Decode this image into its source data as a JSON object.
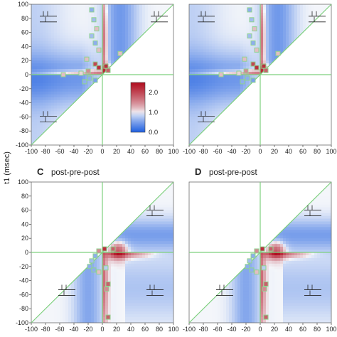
{
  "figure": {
    "ylabel": "t1 (msec)",
    "colors": {
      "low": "#1f5fe0",
      "mid": "#f4f6fa",
      "high": "#b00d1e",
      "guide": "#7ed07e",
      "marker_edge": "#8fd38f"
    }
  },
  "chart_data": [
    {
      "type": "heatmap",
      "panel": "A",
      "letter": "",
      "title": "",
      "xlim": [
        -100,
        100
      ],
      "ylim": [
        -100,
        100
      ],
      "xticks": [
        "-100",
        "-80",
        "-60",
        "-40",
        "-20",
        "0",
        "20",
        "40",
        "60",
        "80",
        "100"
      ],
      "yticks": [
        "100",
        "80",
        "60",
        "40",
        "20",
        "0",
        "-20",
        "-40",
        "-60",
        "-80",
        "-100"
      ],
      "triangle": "upper-left",
      "ridges": [
        "horizontal",
        "vertical"
      ],
      "colorbar": {
        "ticks": [
          "2.0",
          "1.0",
          "0.0"
        ],
        "range": [
          0.0,
          2.5
        ]
      },
      "markers": [
        [
          -15,
          92,
          0.6
        ],
        [
          -12,
          78,
          0.7
        ],
        [
          -8,
          65,
          1.2
        ],
        [
          -15,
          55,
          0.7
        ],
        [
          -10,
          45,
          0.6
        ],
        [
          -5,
          35,
          1.2
        ],
        [
          25,
          30,
          1.2
        ],
        [
          -22,
          22,
          1.2
        ],
        [
          -10,
          15,
          2.0
        ],
        [
          -5,
          10,
          2.2
        ],
        [
          5,
          12,
          2.2
        ],
        [
          8,
          6,
          1.8
        ],
        [
          -20,
          5,
          1.5
        ],
        [
          -55,
          0,
          1.2
        ],
        [
          -30,
          2,
          1.1
        ],
        [
          -18,
          -5,
          0.6
        ],
        [
          -25,
          -10,
          0.6
        ],
        [
          -10,
          -8,
          0.5
        ]
      ]
    },
    {
      "type": "heatmap",
      "panel": "B",
      "letter": "",
      "title": "",
      "xlim": [
        -100,
        100
      ],
      "ylim": [
        -100,
        100
      ],
      "xticks": [
        "-100",
        "-80",
        "-60",
        "-40",
        "-20",
        "0",
        "20",
        "40",
        "60",
        "80",
        "100"
      ],
      "yticks": [],
      "triangle": "upper-left",
      "ridges": [
        "horizontal",
        "vertical"
      ],
      "markers": [
        [
          -15,
          92,
          0.6
        ],
        [
          -12,
          78,
          0.7
        ],
        [
          -8,
          65,
          1.2
        ],
        [
          -15,
          55,
          0.7
        ],
        [
          -10,
          45,
          0.6
        ],
        [
          -5,
          35,
          1.2
        ],
        [
          25,
          30,
          1.2
        ],
        [
          -22,
          22,
          1.2
        ],
        [
          -10,
          15,
          2.0
        ],
        [
          -5,
          10,
          2.2
        ],
        [
          5,
          12,
          2.2
        ],
        [
          8,
          6,
          1.8
        ],
        [
          -20,
          5,
          1.5
        ],
        [
          -55,
          0,
          1.2
        ],
        [
          -30,
          2,
          1.1
        ],
        [
          -18,
          -5,
          0.6
        ],
        [
          -25,
          -10,
          0.6
        ],
        [
          -10,
          -8,
          0.5
        ]
      ]
    },
    {
      "type": "heatmap",
      "panel": "C",
      "letter": "C",
      "title": "post-pre-post",
      "xlim": [
        -100,
        100
      ],
      "ylim": [
        -100,
        100
      ],
      "xticks": [
        "-100",
        "-80",
        "-60",
        "-40",
        "-20",
        "0",
        "20",
        "40",
        "60",
        "80",
        "100"
      ],
      "yticks": [
        "100",
        "80",
        "60",
        "40",
        "20",
        "0",
        "-20",
        "-40",
        "-60",
        "-80",
        "-100"
      ],
      "triangle": "lower-right",
      "ridges": [
        "horizontal-right",
        "vertical-down"
      ],
      "markers": [
        [
          3,
          5,
          2.2
        ],
        [
          -5,
          2,
          1.5
        ],
        [
          15,
          5,
          1.8
        ],
        [
          -10,
          -5,
          0.6
        ],
        [
          -15,
          -12,
          0.7
        ],
        [
          -18,
          -20,
          0.6
        ],
        [
          -12,
          -25,
          0.6
        ],
        [
          -5,
          -28,
          1.2
        ],
        [
          5,
          -22,
          0.8
        ],
        [
          8,
          -45,
          1.8
        ],
        [
          6,
          -52,
          1.5
        ],
        [
          8,
          -92,
          1.8
        ]
      ]
    },
    {
      "type": "heatmap",
      "panel": "D",
      "letter": "D",
      "title": "post-pre-post",
      "xlim": [
        -100,
        100
      ],
      "ylim": [
        -100,
        100
      ],
      "xticks": [
        "-100",
        "-80",
        "-60",
        "-40",
        "-20",
        "0",
        "20",
        "40",
        "60",
        "80",
        "100"
      ],
      "yticks": [],
      "triangle": "lower-right",
      "ridges": [
        "horizontal-right",
        "vertical-down"
      ],
      "markers": [
        [
          3,
          5,
          2.2
        ],
        [
          -5,
          2,
          1.5
        ],
        [
          15,
          5,
          1.8
        ],
        [
          -10,
          -5,
          0.6
        ],
        [
          -15,
          -12,
          0.7
        ],
        [
          -18,
          -20,
          0.6
        ],
        [
          -12,
          -25,
          0.6
        ],
        [
          -5,
          -28,
          1.2
        ],
        [
          5,
          -22,
          0.8
        ],
        [
          8,
          -45,
          1.8
        ],
        [
          6,
          -52,
          1.5
        ],
        [
          8,
          -92,
          1.8
        ]
      ]
    }
  ]
}
